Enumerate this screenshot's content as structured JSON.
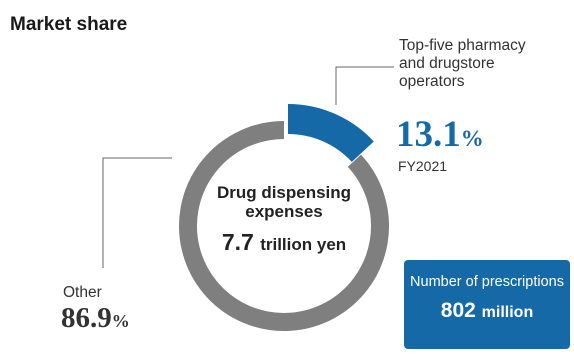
{
  "chart_data": {
    "type": "pie",
    "title": "Market share",
    "categories": [
      "Top-five pharmacy and drugstore operators",
      "Other"
    ],
    "values": [
      13.1,
      86.9
    ],
    "unit": "%",
    "colors": [
      "#1569a6",
      "#7f7f7f"
    ],
    "center_label": "Drug dispensing expenses",
    "center_value_number": "7.7",
    "center_value_unit": "trillion yen",
    "annotations": {
      "top_five_label": "Top-five pharmacy and drugstore operators",
      "top_five_value": "13.1",
      "year": "FY2021",
      "other_label": "Other",
      "other_value": "86.9",
      "percent_sign": "%"
    },
    "prescriptions": {
      "label": "Number of prescriptions",
      "value_number": "802",
      "value_unit": "million"
    },
    "legend": "none"
  },
  "colors": {
    "accent": "#1569a6",
    "other": "#7f7f7f"
  }
}
